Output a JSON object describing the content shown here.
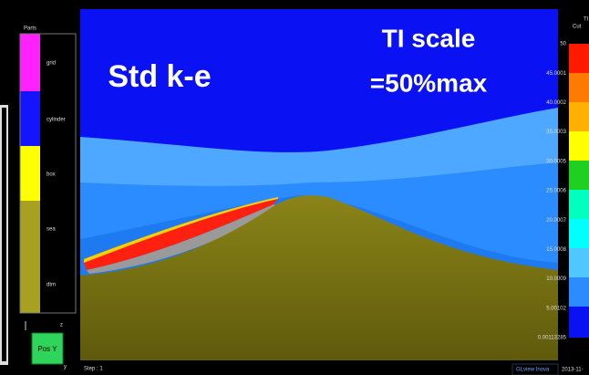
{
  "parts_panel": {
    "title": "Parts",
    "items": [
      "grid",
      "cylinder",
      "box",
      "sea",
      "dtm"
    ]
  },
  "viewport": {
    "model_label": "Std k-e",
    "scale_line1": "TI scale",
    "scale_line2": "=50%max"
  },
  "colorbar": {
    "header1": "TI",
    "header2": "Cut",
    "labels": [
      "50",
      "45.0001",
      "40.0002",
      "35.0003",
      "30.0005",
      "25.0006",
      "20.0007",
      "15.0008",
      "10.0009",
      "5.00102",
      "0.00113285"
    ]
  },
  "axes_widget": {
    "view": "Pos Y",
    "axis1": "z",
    "axis2": "y"
  },
  "status_bar": {
    "step": "Step : 1",
    "brand": "GLview Inova",
    "date": "2013-11-"
  }
}
